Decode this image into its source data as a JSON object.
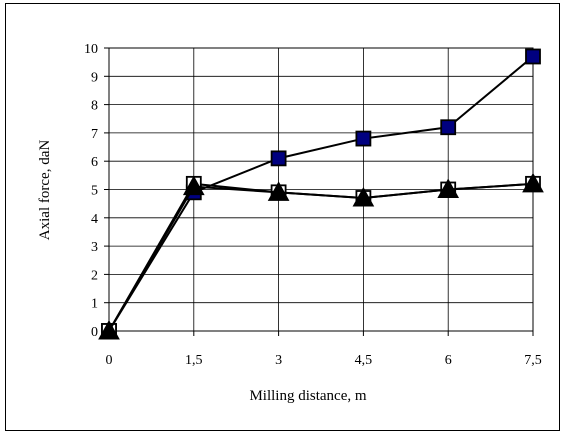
{
  "chart_data": {
    "type": "line",
    "title": "",
    "xlabel": "Milling distance, m",
    "ylabel": "Axial force, daN",
    "categories": [
      "0",
      "1,5",
      "3",
      "4,5",
      "6",
      "7,5"
    ],
    "ylim": [
      0,
      10
    ],
    "yticks": [
      "0",
      "1",
      "2",
      "3",
      "4",
      "5",
      "6",
      "7",
      "8",
      "9",
      "10"
    ],
    "grid": true,
    "legend": "none",
    "series": [
      {
        "values": [
          0,
          4.9,
          6.1,
          6.8,
          7.2,
          9.7
        ],
        "marker": "square",
        "fill": "#000080",
        "line_color": "#000000"
      },
      {
        "values": [
          0,
          5.2,
          4.9,
          4.7,
          5.0,
          5.2
        ],
        "marker": "open-square",
        "fill": "#ffffff",
        "line_color": "#000000"
      },
      {
        "values": [
          0,
          5.1,
          4.9,
          4.7,
          5.0,
          5.2
        ],
        "marker": "triangle",
        "fill": "#000000",
        "line_color": "#000000"
      }
    ]
  }
}
